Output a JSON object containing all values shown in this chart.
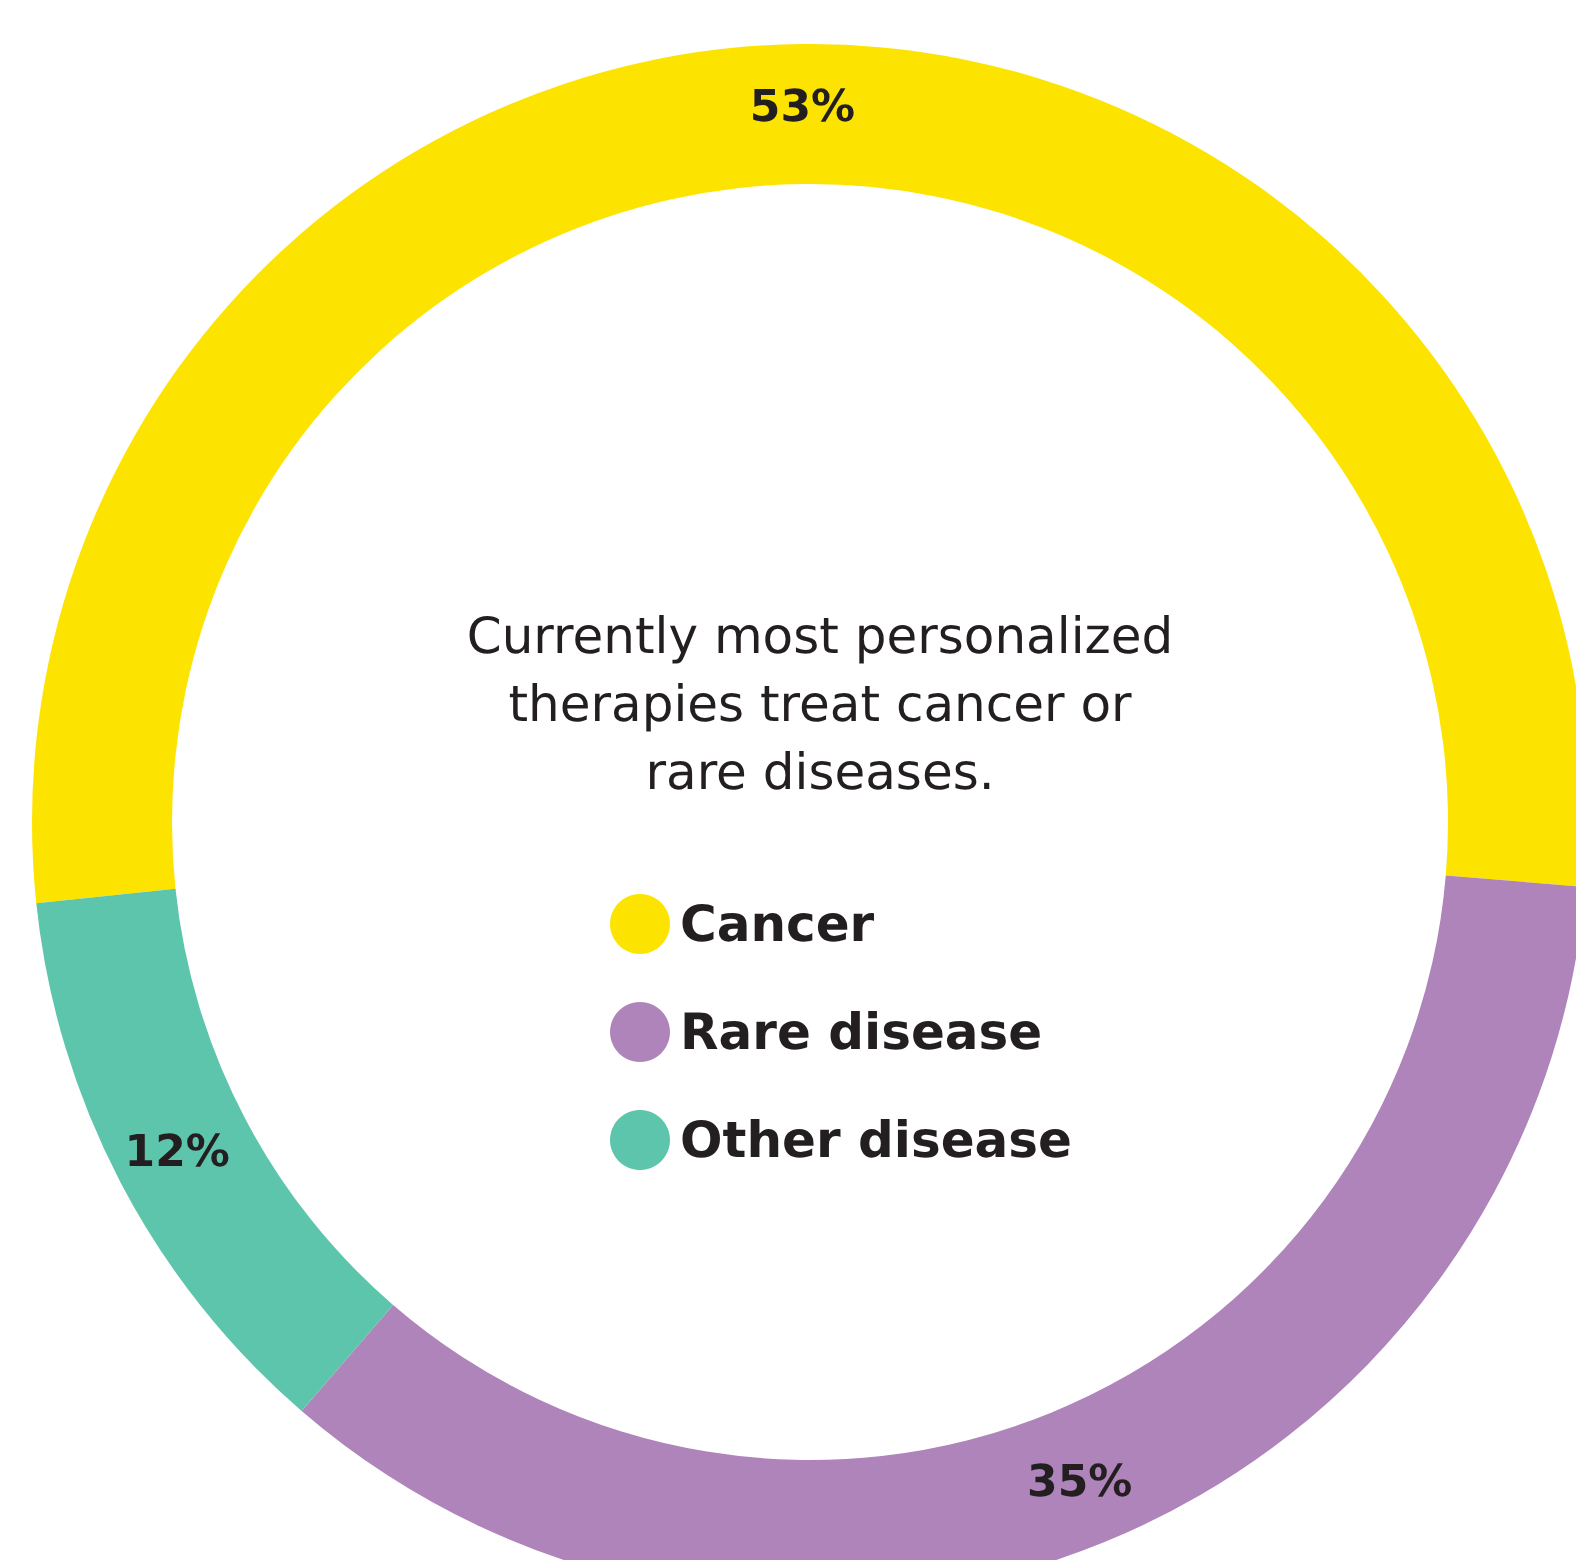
{
  "chart_data": {
    "type": "donut",
    "title": "Currently most personalized\ntherapies treat cancer or\nrare diseases.",
    "categories": [
      "Cancer",
      "Rare disease",
      "Other disease"
    ],
    "values": [
      53,
      35,
      12
    ],
    "colors": [
      "#fde400",
      "#ae84bb",
      "#5ec5ad"
    ],
    "value_labels": [
      "53%",
      "35%",
      "12%"
    ],
    "legend": "center"
  }
}
